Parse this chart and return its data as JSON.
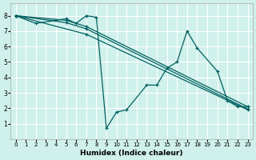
{
  "xlabel": "Humidex (Indice chaleur)",
  "bg_color": "#cff0eb",
  "grid_color": "#ffffff",
  "line_color": "#006060",
  "xlim": [
    -0.5,
    23.5
  ],
  "ylim": [
    0,
    8.8
  ],
  "xticks": [
    0,
    1,
    2,
    3,
    4,
    5,
    6,
    7,
    8,
    9,
    10,
    11,
    12,
    13,
    14,
    15,
    16,
    17,
    18,
    19,
    20,
    21,
    22,
    23
  ],
  "yticks": [
    1,
    2,
    3,
    4,
    5,
    6,
    7,
    8
  ],
  "series": [
    {
      "x": [
        0,
        2,
        5,
        6,
        7,
        8,
        9,
        10,
        11,
        13,
        14,
        15,
        16,
        17,
        18,
        20,
        21,
        22,
        23
      ],
      "y": [
        8.0,
        7.5,
        7.8,
        7.5,
        8.0,
        7.9,
        0.7,
        1.75,
        1.9,
        3.5,
        3.5,
        4.6,
        5.0,
        7.0,
        5.9,
        4.4,
        2.5,
        2.1,
        2.1
      ]
    },
    {
      "x": [
        0,
        5,
        7,
        23
      ],
      "y": [
        8.0,
        7.7,
        7.3,
        2.1
      ]
    },
    {
      "x": [
        0,
        5,
        7,
        23
      ],
      "y": [
        8.0,
        7.55,
        7.15,
        1.95
      ]
    },
    {
      "x": [
        0,
        7,
        23
      ],
      "y": [
        8.0,
        6.8,
        1.9
      ]
    }
  ]
}
